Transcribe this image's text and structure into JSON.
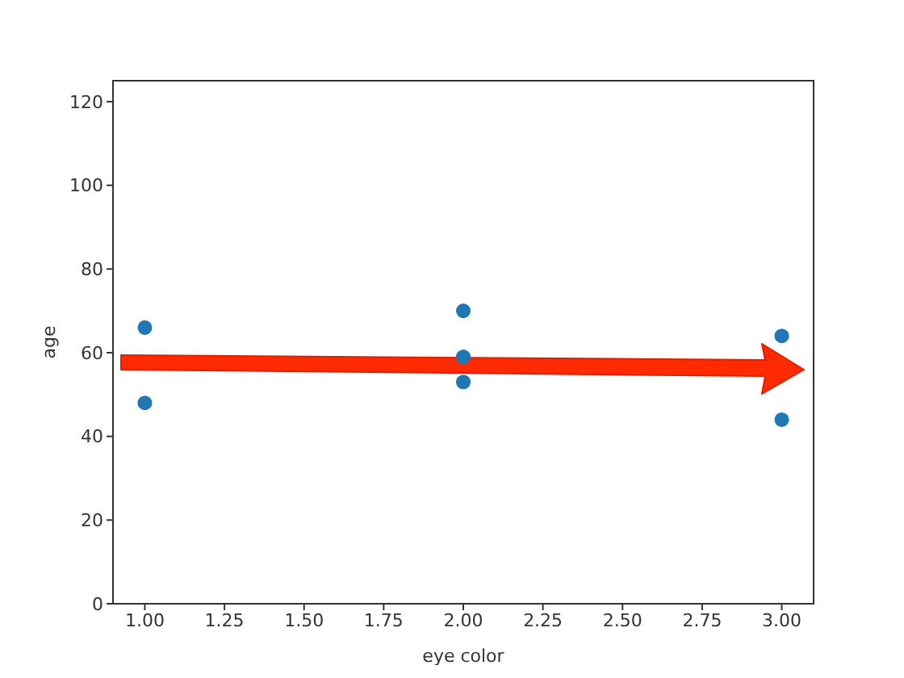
{
  "chart_data": {
    "type": "scatter",
    "xlabel": "eye color",
    "ylabel": "age",
    "x": [
      1,
      1,
      2,
      2,
      2,
      3,
      3
    ],
    "values": [
      66,
      48,
      70,
      59,
      53,
      64,
      44
    ],
    "color": "#1f77b4",
    "marker": "circle",
    "xlim": [
      0.9,
      3.1
    ],
    "xticks": [
      {
        "value": 1,
        "label": "1.00"
      },
      {
        "value": 1.25,
        "label": "1.25"
      },
      {
        "value": 1.5,
        "label": "1.50"
      },
      {
        "value": 1.75,
        "label": "1.75"
      },
      {
        "value": 2,
        "label": "2.00"
      },
      {
        "value": 2.25,
        "label": "2.25"
      },
      {
        "value": 2.5,
        "label": "2.50"
      },
      {
        "value": 2.75,
        "label": "2.75"
      },
      {
        "value": 3,
        "label": "3.00"
      }
    ],
    "ylim": [
      0,
      125
    ],
    "yticks": [
      0,
      20,
      40,
      60,
      80,
      100,
      120
    ],
    "grid": false,
    "legend": false
  }
}
